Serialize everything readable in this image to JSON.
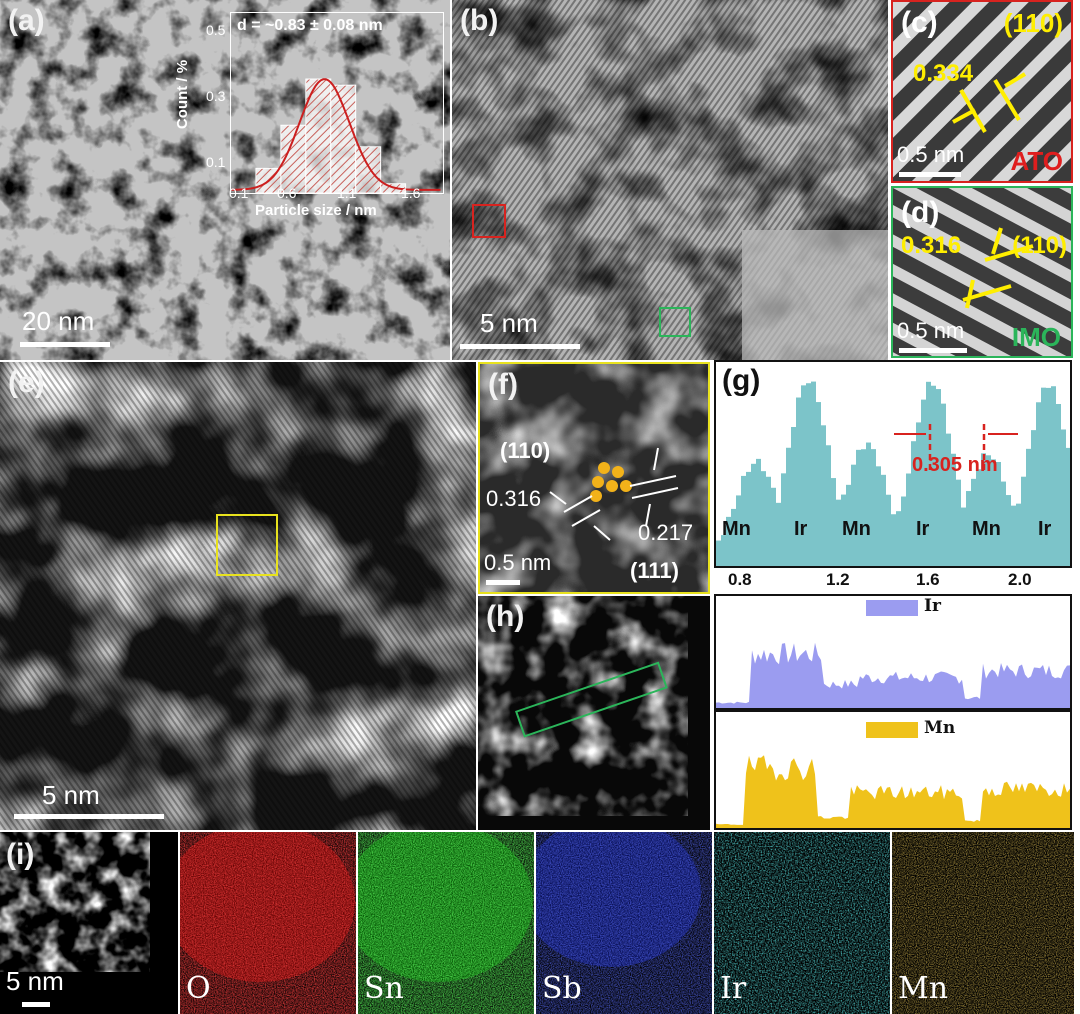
{
  "panels": {
    "a": {
      "label": "(a)",
      "scale": "20 nm"
    },
    "b": {
      "label": "(b)",
      "scale": "5 nm"
    },
    "c": {
      "label": "(c)",
      "plane": "(110)",
      "d_spacing": "0.334",
      "scale": "0.5 nm",
      "material": "ATO"
    },
    "d": {
      "label": "(d)",
      "plane": "(110)",
      "d_spacing": "0.316",
      "scale": "0.5 nm",
      "material": "IMO"
    },
    "e": {
      "label": "(e)",
      "scale": "5 nm"
    },
    "f": {
      "label": "(f)",
      "plane1": "(110)",
      "d1": "0.316",
      "d2": "0.217",
      "plane2": "(111)",
      "scale": "0.5 nm"
    },
    "g": {
      "label": "(g)",
      "spacing": "0.305 nm",
      "atoms": [
        "Mn",
        "Ir",
        "Mn",
        "Ir",
        "Mn",
        "Ir"
      ],
      "ticks": [
        "0.8",
        "1.2",
        "1.6",
        "2.0"
      ]
    },
    "h": {
      "label": "(h)"
    },
    "i": {
      "label": "(i)",
      "scale": "5 nm",
      "maps": [
        "O",
        "Sn",
        "Sb",
        "Ir",
        "Mn"
      ]
    }
  },
  "inset": {
    "title": "d = ~0.83 ± 0.08 nm",
    "xlabel": "Particle size / nm",
    "ylabel": "Count / %",
    "xticks": [
      "0.1",
      "0.6",
      "1.1",
      "1.6"
    ],
    "yticks": [
      "0.1",
      "0.3",
      "0.5"
    ]
  },
  "eds": {
    "ir_legend": "Ir",
    "mn_legend": "Mn",
    "ir_color": "#9b9cf0",
    "mn_color": "#efc21b"
  },
  "chart_data": {
    "type": "bar",
    "categories": [
      "0.4",
      "0.6",
      "0.8",
      "1.0",
      "1.2",
      "1.4"
    ],
    "values": [
      0.13,
      0.27,
      0.42,
      0.4,
      0.2,
      0.08
    ],
    "title": "d = ~0.83 ± 0.08 nm",
    "xlabel": "Particle size / nm",
    "ylabel": "Count / %",
    "ylim": [
      0.05,
      0.55
    ],
    "xlim": [
      0.1,
      1.8
    ]
  }
}
